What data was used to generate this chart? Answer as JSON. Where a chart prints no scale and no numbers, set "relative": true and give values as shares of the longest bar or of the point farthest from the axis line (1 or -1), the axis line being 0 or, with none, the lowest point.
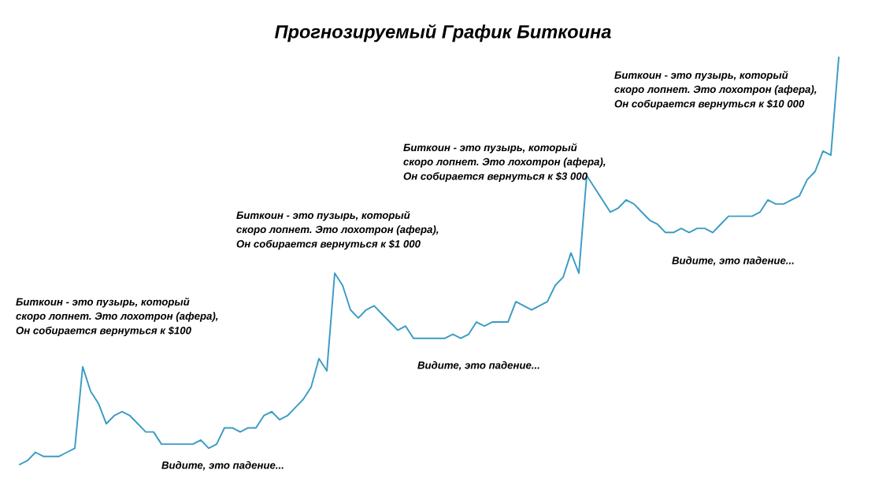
{
  "chart_data": {
    "type": "line",
    "title": "Прогнозируемый График Биткоина",
    "relative": true,
    "color": "#3a9cc4",
    "categories": [
      null,
      null,
      null,
      null,
      null,
      null,
      null,
      null,
      null,
      null,
      null,
      null,
      null,
      null,
      null,
      null,
      null,
      null,
      null,
      null,
      null,
      null,
      null,
      null,
      null,
      null,
      null,
      null,
      null,
      null,
      null,
      null,
      null,
      null,
      null,
      null,
      null,
      null,
      null,
      null,
      null,
      null,
      null,
      null,
      null,
      null,
      null,
      null,
      null,
      null,
      null,
      null,
      null,
      null,
      null,
      null,
      null,
      null,
      null,
      null,
      null,
      null,
      null,
      null,
      null,
      null,
      null,
      null,
      null,
      null,
      null,
      null,
      null,
      null,
      null,
      null,
      null,
      null,
      null,
      null,
      null,
      null,
      null,
      null,
      null,
      null,
      null,
      null,
      null,
      null,
      null,
      null,
      null,
      null,
      null,
      null,
      null,
      null,
      null,
      null,
      null,
      null,
      null,
      null,
      null
    ],
    "values": [
      0,
      0.01,
      0.03,
      0.02,
      0.02,
      0.02,
      0.03,
      0.04,
      0.24,
      0.18,
      0.15,
      0.1,
      0.12,
      0.13,
      0.12,
      0.1,
      0.08,
      0.08,
      0.05,
      0.05,
      0.05,
      0.05,
      0.05,
      0.06,
      0.04,
      0.05,
      0.09,
      0.09,
      0.08,
      0.09,
      0.09,
      0.12,
      0.13,
      0.11,
      0.12,
      0.14,
      0.16,
      0.19,
      0.26,
      0.23,
      0.47,
      0.44,
      0.38,
      0.36,
      0.38,
      0.39,
      0.37,
      0.35,
      0.33,
      0.34,
      0.31,
      0.31,
      0.31,
      0.31,
      0.31,
      0.32,
      0.31,
      0.32,
      0.35,
      0.34,
      0.35,
      0.35,
      0.35,
      0.4,
      0.39,
      0.38,
      0.39,
      0.4,
      0.44,
      0.46,
      0.52,
      0.47,
      0.71,
      0.68,
      0.65,
      0.62,
      0.63,
      0.65,
      0.64,
      0.62,
      0.6,
      0.59,
      0.57,
      0.57,
      0.58,
      0.57,
      0.58,
      0.58,
      0.57,
      0.59,
      0.61,
      0.61,
      0.61,
      0.61,
      0.62,
      0.65,
      0.64,
      0.64,
      0.65,
      0.66,
      0.7,
      0.72,
      0.77,
      0.76,
      1
    ],
    "annotations": [
      "Биткоин - это пузырь, который\nскоро лопнет. Это лохотрон (афера),\nОн собирается вернуться к $100",
      "Видите, это падение...",
      "Биткоин - это пузырь, который\nскоро лопнет. Это лохотрон (афера),\nОн собирается вернуться к $1 000",
      "Видите, это падение...",
      "Биткоин - это пузырь, который\nскоро лопнет. Это лохотрон (афера),\nОн собирается вернуться к $3 000",
      "Видите, это падение...",
      "Биткоин - это пузырь, который\nскоро лопнет. Это лохотрон (афера),\nОн собирается вернуться к $10 000"
    ]
  }
}
